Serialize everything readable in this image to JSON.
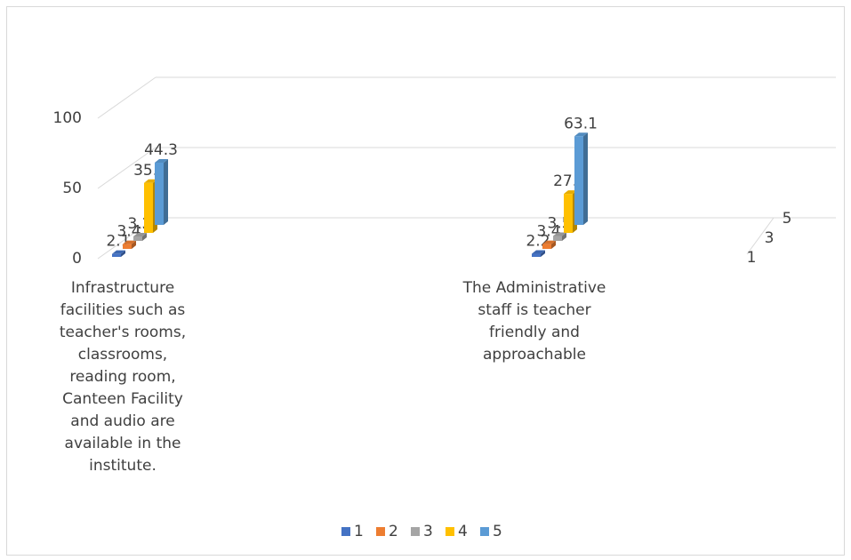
{
  "chart_data": {
    "type": "bar3d",
    "categories": [
      "Infrastructure facilities such as teacher's rooms, classrooms, reading room, Canteen Facility and audio are available in the institute.",
      "The Administrative staff is teacher friendly and approachable"
    ],
    "series": [
      {
        "name": "1",
        "color": "#4472c4",
        "values": [
          2.1,
          2.2
        ]
      },
      {
        "name": "2",
        "color": "#ed7d31",
        "values": [
          3.4,
          3.4
        ]
      },
      {
        "name": "3",
        "color": "#a5a5a5",
        "values": [
          3.2,
          3.5
        ]
      },
      {
        "name": "4",
        "color": "#ffc000",
        "values": [
          35.6,
          27.8
        ]
      },
      {
        "name": "5",
        "color": "#5b9bd5",
        "values": [
          44.3,
          63.1
        ]
      }
    ],
    "ylim": [
      0,
      100
    ],
    "yticks": [
      0,
      50,
      100
    ],
    "grid": true,
    "legend": "bottom"
  }
}
